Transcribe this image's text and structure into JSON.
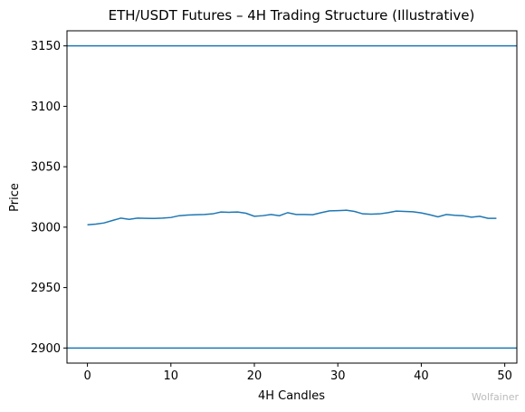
{
  "chart_data": {
    "type": "line",
    "title": "ETH/USDT Futures – 4H Trading Structure (Illustrative)",
    "x_label": "4H Candles",
    "y_label": "Price",
    "x": [
      0,
      1,
      2,
      3,
      4,
      5,
      6,
      7,
      8,
      9,
      10,
      11,
      12,
      13,
      14,
      15,
      16,
      17,
      18,
      19,
      20,
      21,
      22,
      23,
      24,
      25,
      26,
      27,
      28,
      29,
      30,
      31,
      32,
      33,
      34,
      35,
      36,
      37,
      38,
      39,
      40,
      41,
      42,
      43,
      44,
      45,
      46,
      47,
      48,
      49
    ],
    "values": [
      3002,
      3002.5,
      3003.5,
      3005.5,
      3007.5,
      3006.5,
      3007.5,
      3007.3,
      3007.2,
      3007.5,
      3008,
      3009.5,
      3010,
      3010.3,
      3010.5,
      3011,
      3012.5,
      3012.3,
      3012.5,
      3011.5,
      3009,
      3009.5,
      3010.5,
      3009.5,
      3012,
      3010.5,
      3010.5,
      3010.3,
      3012,
      3013.5,
      3013.7,
      3014,
      3013,
      3011,
      3010.8,
      3011,
      3012,
      3013.3,
      3013,
      3012.7,
      3011.8,
      3010.3,
      3008.5,
      3010.5,
      3009.8,
      3009.5,
      3008.2,
      3009,
      3007.3,
      3007.3
    ],
    "color": "#1f77b4",
    "hlines": [
      3150,
      2900
    ],
    "xlim": [
      -2.45,
      51.45
    ],
    "xticks": [
      0,
      10,
      20,
      30,
      40,
      50
    ],
    "ylim": [
      2887.5,
      3162.5
    ],
    "yticks": [
      2900,
      2950,
      3000,
      3050,
      3100,
      3150
    ],
    "grid": false,
    "watermark": "Wolfainer"
  }
}
